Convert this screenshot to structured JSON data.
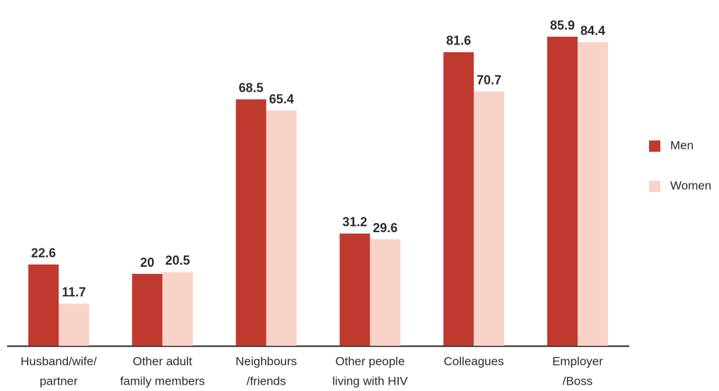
{
  "chart_data": {
    "type": "bar",
    "categories": [
      [
        "Husband/wife/",
        "partner"
      ],
      [
        "Other adult",
        "family members"
      ],
      [
        "Neighbours",
        "/friends"
      ],
      [
        "Other people",
        "living with HIV"
      ],
      [
        "Colleagues"
      ],
      [
        "Employer",
        "/Boss"
      ]
    ],
    "series": [
      {
        "name": "Men",
        "color": "#c0392f",
        "values": [
          22.6,
          20,
          68.5,
          31.2,
          81.6,
          85.9
        ]
      },
      {
        "name": "Women",
        "color": "#f9d3c8",
        "values": [
          11.7,
          20.5,
          65.4,
          29.6,
          70.7,
          84.4
        ]
      }
    ]
  }
}
